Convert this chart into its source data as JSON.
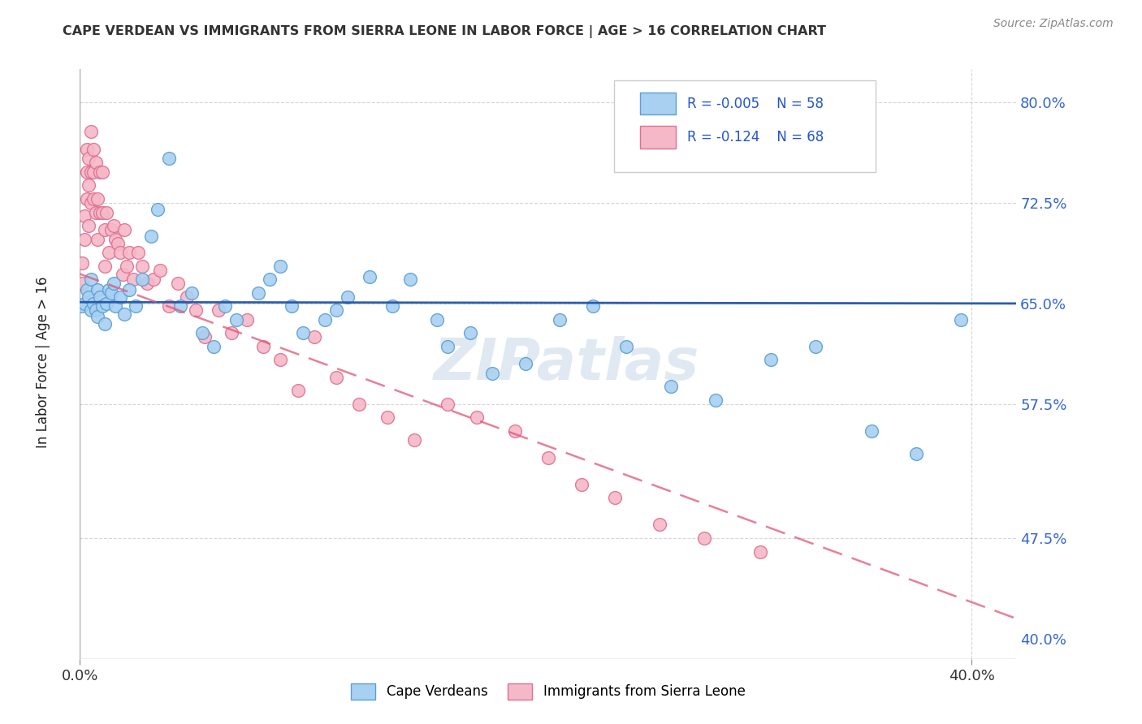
{
  "title": "CAPE VERDEAN VS IMMIGRANTS FROM SIERRA LEONE IN LABOR FORCE | AGE > 16 CORRELATION CHART",
  "source": "Source: ZipAtlas.com",
  "ylabel": "In Labor Force | Age > 16",
  "xlim": [
    0.0,
    0.42
  ],
  "ylim": [
    0.385,
    0.825
  ],
  "yticks": [
    0.4,
    0.475,
    0.575,
    0.65,
    0.725,
    0.8
  ],
  "ytick_labels": [
    "40.0%",
    "47.5%",
    "57.5%",
    "65.0%",
    "72.5%",
    "80.0%"
  ],
  "xticks": [
    0.0,
    0.4
  ],
  "xtick_labels": [
    "0.0%",
    "40.0%"
  ],
  "blue_color": "#A8D0F0",
  "pink_color": "#F5B8C8",
  "blue_edge": "#5B9FD4",
  "pink_edge": "#E07090",
  "trend_blue_color": "#2255AA",
  "trend_pink_color": "#E05575",
  "grid_color": "#CCCCCC",
  "r_blue": -0.005,
  "n_blue": 58,
  "r_pink": -0.124,
  "n_pink": 68,
  "watermark": "ZIPatlas",
  "legend_label_blue": "Cape Verdeans",
  "legend_label_pink": "Immigrants from Sierra Leone",
  "blue_trend_x0": 0.0,
  "blue_trend_y0": 0.651,
  "blue_trend_x1": 0.42,
  "blue_trend_y1": 0.65,
  "pink_trend_x0": 0.0,
  "pink_trend_y0": 0.672,
  "pink_trend_x1": 0.42,
  "pink_trend_y1": 0.415,
  "blue_x": [
    0.001,
    0.002,
    0.003,
    0.004,
    0.005,
    0.005,
    0.006,
    0.007,
    0.008,
    0.008,
    0.009,
    0.01,
    0.011,
    0.012,
    0.013,
    0.014,
    0.015,
    0.016,
    0.018,
    0.02,
    0.022,
    0.025,
    0.028,
    0.032,
    0.035,
    0.04,
    0.045,
    0.05,
    0.055,
    0.06,
    0.065,
    0.07,
    0.08,
    0.085,
    0.09,
    0.095,
    0.1,
    0.11,
    0.115,
    0.12,
    0.13,
    0.14,
    0.148,
    0.16,
    0.165,
    0.175,
    0.185,
    0.2,
    0.215,
    0.23,
    0.245,
    0.265,
    0.285,
    0.31,
    0.33,
    0.355,
    0.375,
    0.395
  ],
  "blue_y": [
    0.648,
    0.65,
    0.66,
    0.655,
    0.645,
    0.668,
    0.65,
    0.645,
    0.66,
    0.64,
    0.655,
    0.648,
    0.635,
    0.65,
    0.66,
    0.658,
    0.665,
    0.648,
    0.655,
    0.642,
    0.66,
    0.648,
    0.668,
    0.7,
    0.72,
    0.758,
    0.648,
    0.658,
    0.628,
    0.618,
    0.648,
    0.638,
    0.658,
    0.668,
    0.678,
    0.648,
    0.628,
    0.638,
    0.645,
    0.655,
    0.67,
    0.648,
    0.668,
    0.638,
    0.618,
    0.628,
    0.598,
    0.605,
    0.638,
    0.648,
    0.618,
    0.588,
    0.578,
    0.608,
    0.618,
    0.555,
    0.538,
    0.638
  ],
  "pink_x": [
    0.001,
    0.001,
    0.002,
    0.002,
    0.003,
    0.003,
    0.003,
    0.004,
    0.004,
    0.004,
    0.005,
    0.005,
    0.005,
    0.006,
    0.006,
    0.006,
    0.007,
    0.007,
    0.008,
    0.008,
    0.009,
    0.009,
    0.01,
    0.01,
    0.011,
    0.011,
    0.012,
    0.013,
    0.014,
    0.015,
    0.016,
    0.017,
    0.018,
    0.019,
    0.02,
    0.021,
    0.022,
    0.024,
    0.026,
    0.028,
    0.03,
    0.033,
    0.036,
    0.04,
    0.044,
    0.048,
    0.052,
    0.056,
    0.062,
    0.068,
    0.075,
    0.082,
    0.09,
    0.098,
    0.105,
    0.115,
    0.125,
    0.138,
    0.15,
    0.165,
    0.178,
    0.195,
    0.21,
    0.225,
    0.24,
    0.26,
    0.28,
    0.305
  ],
  "pink_y": [
    0.665,
    0.68,
    0.698,
    0.715,
    0.728,
    0.748,
    0.765,
    0.708,
    0.738,
    0.758,
    0.725,
    0.748,
    0.778,
    0.728,
    0.748,
    0.765,
    0.718,
    0.755,
    0.698,
    0.728,
    0.718,
    0.748,
    0.718,
    0.748,
    0.678,
    0.705,
    0.718,
    0.688,
    0.705,
    0.708,
    0.698,
    0.695,
    0.688,
    0.672,
    0.705,
    0.678,
    0.688,
    0.668,
    0.688,
    0.678,
    0.665,
    0.668,
    0.675,
    0.648,
    0.665,
    0.655,
    0.645,
    0.625,
    0.645,
    0.628,
    0.638,
    0.618,
    0.608,
    0.585,
    0.625,
    0.595,
    0.575,
    0.565,
    0.548,
    0.575,
    0.565,
    0.555,
    0.535,
    0.515,
    0.505,
    0.485,
    0.475,
    0.465
  ]
}
